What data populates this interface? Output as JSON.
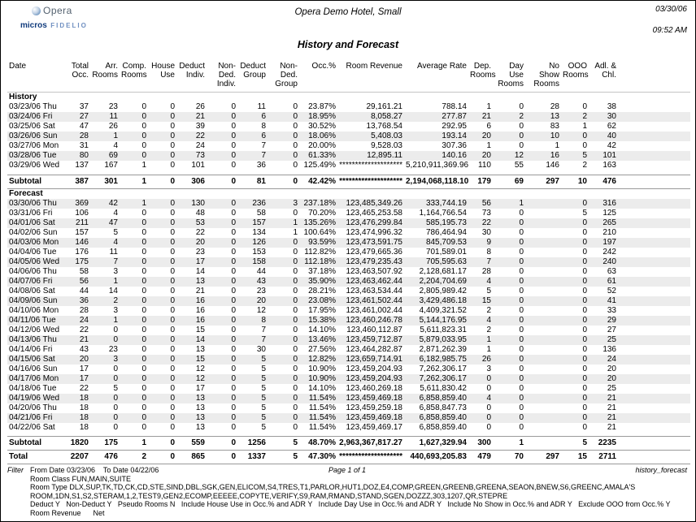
{
  "header": {
    "logo": {
      "brand": "Opera",
      "micros": "micros",
      "fidelio": "FIDELIO"
    },
    "hotel_name": "Opera Demo Hotel, Small",
    "print_date": "03/30/06",
    "print_time": "09:52 AM",
    "report_title": "History and Forecast"
  },
  "table": {
    "columns": [
      "Date",
      "Total\nOcc.",
      "Arr.\nRooms",
      "Comp.\nRooms",
      "House\nUse",
      "Deduct\nIndiv.",
      "Non-Ded.\nIndiv.",
      "Deduct\nGroup",
      "Non-Ded.\nGroup",
      "Occ.%",
      "Room Revenue",
      "Average Rate",
      "Dep.\nRooms",
      "Day Use\nRooms",
      "No Show\nRooms",
      "OOO\nRooms",
      "Adl. &\nChl."
    ],
    "sections": [
      {
        "label": "History",
        "rows": [
          [
            "03/23/06 Thu",
            "37",
            "23",
            "0",
            "0",
            "26",
            "0",
            "11",
            "0",
            "23.87%",
            "29,161.21",
            "788.14",
            "1",
            "0",
            "28",
            "0",
            "38"
          ],
          [
            "03/24/06 Fri",
            "27",
            "11",
            "0",
            "0",
            "21",
            "0",
            "6",
            "0",
            "18.95%",
            "8,058.27",
            "277.87",
            "21",
            "2",
            "13",
            "2",
            "30"
          ],
          [
            "03/25/06 Sat",
            "47",
            "26",
            "0",
            "0",
            "39",
            "0",
            "8",
            "0",
            "30.52%",
            "13,768.54",
            "292.95",
            "6",
            "0",
            "83",
            "1",
            "62"
          ],
          [
            "03/26/06 Sun",
            "28",
            "1",
            "0",
            "0",
            "22",
            "0",
            "6",
            "0",
            "18.06%",
            "5,408.03",
            "193.14",
            "20",
            "0",
            "10",
            "0",
            "40"
          ],
          [
            "03/27/06 Mon",
            "31",
            "4",
            "0",
            "0",
            "24",
            "0",
            "7",
            "0",
            "20.00%",
            "9,528.03",
            "307.36",
            "1",
            "0",
            "1",
            "0",
            "42"
          ],
          [
            "03/28/06 Tue",
            "80",
            "69",
            "0",
            "0",
            "73",
            "0",
            "7",
            "0",
            "61.33%",
            "12,895.11",
            "140.16",
            "20",
            "12",
            "16",
            "5",
            "101"
          ],
          [
            "03/29/06 Wed",
            "137",
            "167",
            "1",
            "0",
            "101",
            "0",
            "36",
            "0",
            "125.49%",
            "********************",
            "5,210,911,369.96",
            "110",
            "55",
            "146",
            "2",
            "163"
          ]
        ],
        "subtotal": [
          "Subtotal",
          "387",
          "301",
          "1",
          "0",
          "306",
          "0",
          "81",
          "0",
          "42.42%",
          "********************",
          "2,194,068,118.10",
          "179",
          "69",
          "297",
          "10",
          "476"
        ]
      },
      {
        "label": "Forecast",
        "rows": [
          [
            "03/30/06 Thu",
            "369",
            "42",
            "1",
            "0",
            "130",
            "0",
            "236",
            "3",
            "237.18%",
            "123,485,349.26",
            "333,744.19",
            "56",
            "1",
            "",
            "0",
            "316"
          ],
          [
            "03/31/06 Fri",
            "106",
            "4",
            "0",
            "0",
            "48",
            "0",
            "58",
            "0",
            "70.20%",
            "123,465,253.58",
            "1,164,766.54",
            "73",
            "0",
            "",
            "5",
            "125"
          ],
          [
            "04/01/06 Sat",
            "211",
            "47",
            "0",
            "0",
            "53",
            "0",
            "157",
            "1",
            "135.26%",
            "123,476,299.84",
            "585,195.73",
            "22",
            "0",
            "",
            "0",
            "265"
          ],
          [
            "04/02/06 Sun",
            "157",
            "5",
            "0",
            "0",
            "22",
            "0",
            "134",
            "1",
            "100.64%",
            "123,474,996.32",
            "786,464.94",
            "30",
            "0",
            "",
            "0",
            "210"
          ],
          [
            "04/03/06 Mon",
            "146",
            "4",
            "0",
            "0",
            "20",
            "0",
            "126",
            "0",
            "93.59%",
            "123,473,591.75",
            "845,709.53",
            "9",
            "0",
            "",
            "0",
            "197"
          ],
          [
            "04/04/06 Tue",
            "176",
            "11",
            "0",
            "0",
            "23",
            "0",
            "153",
            "0",
            "112.82%",
            "123,479,665.36",
            "701,589.01",
            "8",
            "0",
            "",
            "0",
            "242"
          ],
          [
            "04/05/06 Wed",
            "175",
            "7",
            "0",
            "0",
            "17",
            "0",
            "158",
            "0",
            "112.18%",
            "123,479,235.43",
            "705,595.63",
            "7",
            "0",
            "",
            "0",
            "240"
          ],
          [
            "04/06/06 Thu",
            "58",
            "3",
            "0",
            "0",
            "14",
            "0",
            "44",
            "0",
            "37.18%",
            "123,463,507.92",
            "2,128,681.17",
            "28",
            "0",
            "",
            "0",
            "63"
          ],
          [
            "04/07/06 Fri",
            "56",
            "1",
            "0",
            "0",
            "13",
            "0",
            "43",
            "0",
            "35.90%",
            "123,463,462.44",
            "2,204,704.69",
            "4",
            "0",
            "",
            "0",
            "61"
          ],
          [
            "04/08/06 Sat",
            "44",
            "14",
            "0",
            "0",
            "21",
            "0",
            "23",
            "0",
            "28.21%",
            "123,463,534.44",
            "2,805,989.42",
            "5",
            "0",
            "",
            "0",
            "52"
          ],
          [
            "04/09/06 Sun",
            "36",
            "2",
            "0",
            "0",
            "16",
            "0",
            "20",
            "0",
            "23.08%",
            "123,461,502.44",
            "3,429,486.18",
            "15",
            "0",
            "",
            "0",
            "41"
          ],
          [
            "04/10/06 Mon",
            "28",
            "3",
            "0",
            "0",
            "16",
            "0",
            "12",
            "0",
            "17.95%",
            "123,461,002.44",
            "4,409,321.52",
            "2",
            "0",
            "",
            "0",
            "33"
          ],
          [
            "04/11/06 Tue",
            "24",
            "1",
            "0",
            "0",
            "16",
            "0",
            "8",
            "0",
            "15.38%",
            "123,460,246.78",
            "5,144,176.95",
            "4",
            "0",
            "",
            "0",
            "29"
          ],
          [
            "04/12/06 Wed",
            "22",
            "0",
            "0",
            "0",
            "15",
            "0",
            "7",
            "0",
            "14.10%",
            "123,460,112.87",
            "5,611,823.31",
            "2",
            "0",
            "",
            "0",
            "27"
          ],
          [
            "04/13/06 Thu",
            "21",
            "0",
            "0",
            "0",
            "14",
            "0",
            "7",
            "0",
            "13.46%",
            "123,459,712.87",
            "5,879,033.95",
            "1",
            "0",
            "",
            "0",
            "25"
          ],
          [
            "04/14/06 Fri",
            "43",
            "23",
            "0",
            "0",
            "13",
            "0",
            "30",
            "0",
            "27.56%",
            "123,464,282.87",
            "2,871,262.39",
            "1",
            "0",
            "",
            "0",
            "136"
          ],
          [
            "04/15/06 Sat",
            "20",
            "3",
            "0",
            "0",
            "15",
            "0",
            "5",
            "0",
            "12.82%",
            "123,659,714.91",
            "6,182,985.75",
            "26",
            "0",
            "",
            "0",
            "24"
          ],
          [
            "04/16/06 Sun",
            "17",
            "0",
            "0",
            "0",
            "12",
            "0",
            "5",
            "0",
            "10.90%",
            "123,459,204.93",
            "7,262,306.17",
            "3",
            "0",
            "",
            "0",
            "20"
          ],
          [
            "04/17/06 Mon",
            "17",
            "0",
            "0",
            "0",
            "12",
            "0",
            "5",
            "0",
            "10.90%",
            "123,459,204.93",
            "7,262,306.17",
            "0",
            "0",
            "",
            "0",
            "20"
          ],
          [
            "04/18/06 Tue",
            "22",
            "5",
            "0",
            "0",
            "17",
            "0",
            "5",
            "0",
            "14.10%",
            "123,460,269.18",
            "5,611,830.42",
            "0",
            "0",
            "",
            "0",
            "25"
          ],
          [
            "04/19/06 Wed",
            "18",
            "0",
            "0",
            "0",
            "13",
            "0",
            "5",
            "0",
            "11.54%",
            "123,459,469.18",
            "6,858,859.40",
            "4",
            "0",
            "",
            "0",
            "21"
          ],
          [
            "04/20/06 Thu",
            "18",
            "0",
            "0",
            "0",
            "13",
            "0",
            "5",
            "0",
            "11.54%",
            "123,459,259.18",
            "6,858,847.73",
            "0",
            "0",
            "",
            "0",
            "21"
          ],
          [
            "04/21/06 Fri",
            "18",
            "0",
            "0",
            "0",
            "13",
            "0",
            "5",
            "0",
            "11.54%",
            "123,459,469.18",
            "6,858,859.40",
            "0",
            "0",
            "",
            "0",
            "21"
          ],
          [
            "04/22/06 Sat",
            "18",
            "0",
            "0",
            "0",
            "13",
            "0",
            "5",
            "0",
            "11.54%",
            "123,459,469.17",
            "6,858,859.40",
            "0",
            "0",
            "",
            "0",
            "21"
          ]
        ],
        "subtotal": [
          "Subtotal",
          "1820",
          "175",
          "1",
          "0",
          "559",
          "0",
          "1256",
          "5",
          "48.70%",
          "2,963,367,817.27",
          "1,627,329.94",
          "300",
          "1",
          "",
          "5",
          "2235"
        ]
      }
    ],
    "total": [
      "Total",
      "2207",
      "476",
      "2",
      "0",
      "865",
      "0",
      "1337",
      "5",
      "47.30%",
      "********************",
      "440,693,205.83",
      "479",
      "70",
      "297",
      "15",
      "2711"
    ]
  },
  "footer": {
    "filter_label": "Filter",
    "date_range": "From Date 03/23/06    To Date 04/22/06",
    "page_info": "Page 1 of 1",
    "report_file": "history_forecast",
    "room_class": "Room Class FUN,MAIN,SUITE",
    "room_type_line1": "Room Type DLX,SUP,TK,TD,CK,CD,STE,SIND,DBL,SGK,GEN,ELICOM,S4,TRES,T1,PARLOR,HUT1,DOZ,E4,COMP,GREEN,GREENB,GREENA,SEAON,BNEW,S6,GREENC,AMALA'S",
    "room_type_line2": "ROOM,1DN,S1,S2,STERAM,1,2,TEST9,GEN2,ECOMP,EEEEE,COPYTE,VERIFY,S9,RAM,RMAND,STAND,SGEN,DOZZZ,303,1207,QR,STEPRE",
    "options_line": "Deduct Y   Non-Deduct Y   Pseudo Rooms N   Include House Use in Occ.% and ADR Y   Include Day Use in Occ.% and ADR Y   Include No Show in Occ.% and ADR Y   Exclude OOO from Occ.% Y",
    "revenue_line": "Room Revenue      Net"
  }
}
